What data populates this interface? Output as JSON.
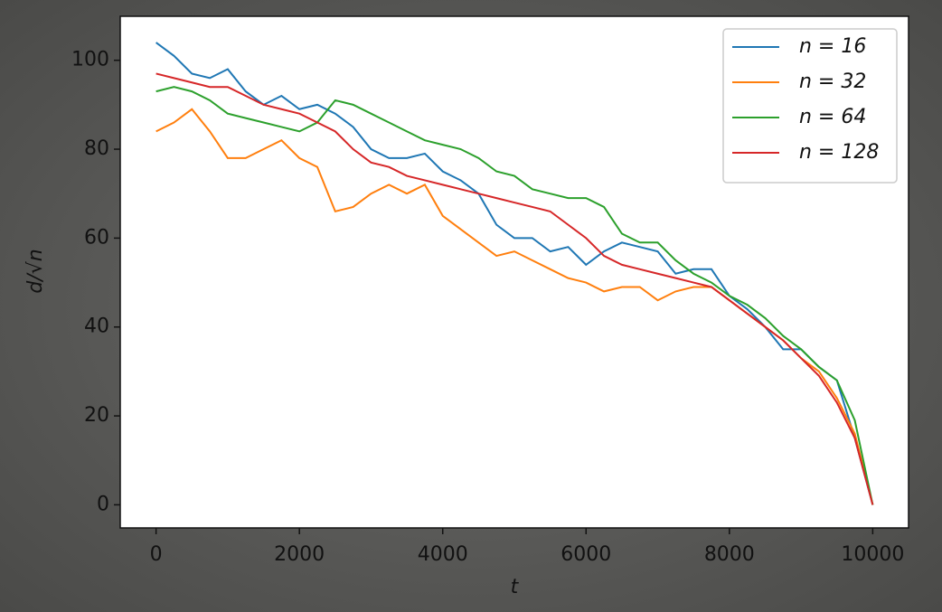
{
  "chart_data": {
    "type": "line",
    "x_label": "t",
    "y_label": "d/√n",
    "x": [
      0,
      250,
      500,
      750,
      1000,
      1250,
      1500,
      1750,
      2000,
      2250,
      2500,
      2750,
      3000,
      3250,
      3500,
      3750,
      4000,
      4250,
      4500,
      4750,
      5000,
      5250,
      5500,
      5750,
      6000,
      6250,
      6500,
      6750,
      7000,
      7250,
      7500,
      7750,
      8000,
      8250,
      8500,
      8750,
      9000,
      9250,
      9500,
      9750,
      10000
    ],
    "series": [
      {
        "name": "n = 16",
        "color": "#1f77b4",
        "values": [
          104,
          101,
          97,
          96,
          98,
          93,
          90,
          92,
          89,
          90,
          88,
          85,
          80,
          78,
          78,
          79,
          75,
          73,
          70,
          63,
          60,
          60,
          57,
          58,
          54,
          57,
          59,
          58,
          57,
          52,
          53,
          53,
          47,
          44,
          40,
          35,
          35,
          31,
          28,
          15,
          0
        ]
      },
      {
        "name": "n = 32",
        "color": "#ff7f0e",
        "values": [
          84,
          86,
          89,
          84,
          78,
          78,
          80,
          82,
          78,
          76,
          66,
          67,
          70,
          72,
          70,
          72,
          65,
          62,
          59,
          56,
          57,
          55,
          53,
          51,
          50,
          48,
          49,
          49,
          46,
          48,
          49,
          49,
          46,
          43,
          40,
          37,
          33,
          30,
          24,
          16,
          0
        ]
      },
      {
        "name": "n = 64",
        "color": "#2ca02c",
        "values": [
          93,
          94,
          93,
          91,
          88,
          87,
          86,
          85,
          84,
          86,
          91,
          90,
          88,
          86,
          84,
          82,
          81,
          80,
          78,
          75,
          74,
          71,
          70,
          69,
          69,
          67,
          61,
          59,
          59,
          55,
          52,
          50,
          47,
          45,
          42,
          38,
          35,
          31,
          28,
          19,
          0
        ]
      },
      {
        "name": "n = 128",
        "color": "#d62728",
        "values": [
          97,
          96,
          95,
          94,
          94,
          92,
          90,
          89,
          88,
          86,
          84,
          80,
          77,
          76,
          74,
          73,
          72,
          71,
          70,
          69,
          68,
          67,
          66,
          63,
          60,
          56,
          54,
          53,
          52,
          51,
          50,
          49,
          46,
          43,
          40,
          37,
          33,
          29,
          23,
          15,
          0
        ]
      }
    ],
    "xlim": [
      -500,
      10500
    ],
    "ylim": [
      -5.2,
      109.9
    ],
    "xticks": [
      0,
      2000,
      4000,
      6000,
      8000,
      10000
    ],
    "yticks": [
      0,
      20,
      40,
      60,
      80,
      100
    ],
    "legend": "upper right",
    "grid": false
  }
}
